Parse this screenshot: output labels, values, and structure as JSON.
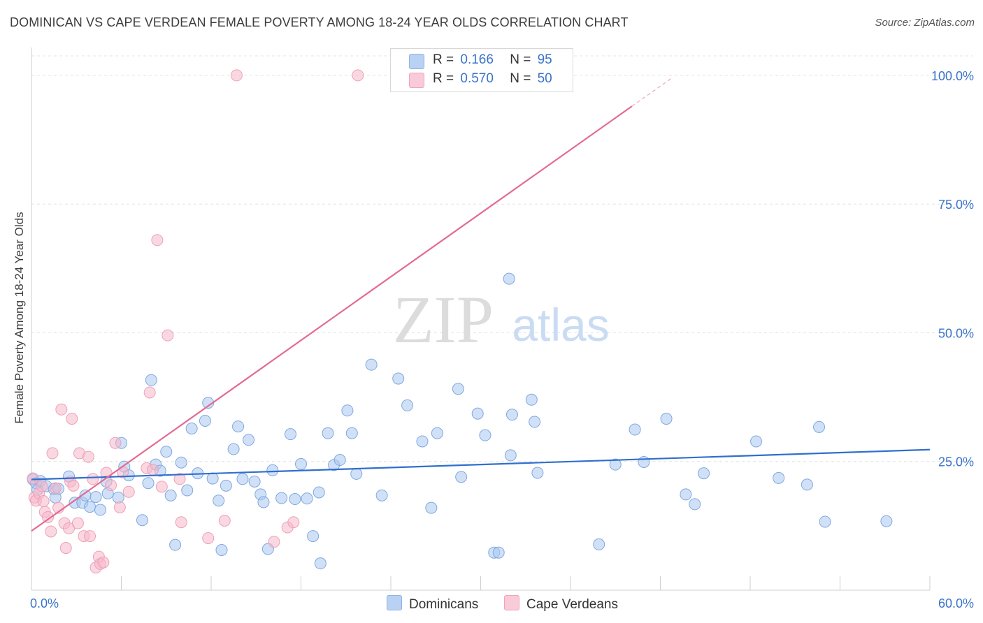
{
  "header": {
    "title": "DOMINICAN VS CAPE VERDEAN FEMALE POVERTY AMONG 18-24 YEAR OLDS CORRELATION CHART",
    "source": "Source: ZipAtlas.com"
  },
  "watermark": {
    "zip": "ZIP",
    "atlas": "atlas"
  },
  "legend_stats": {
    "r_label": "R =",
    "n_label": "N =",
    "rows": [
      {
        "r": "0.166",
        "n": "95",
        "color": "#a9c8f0"
      },
      {
        "r": "0.570",
        "n": "50",
        "color": "#f5b8ca"
      }
    ]
  },
  "bottom_legend": [
    "Dominicans",
    "Cape Verdeans"
  ],
  "chart_data": {
    "type": "scatter",
    "title": "DOMINICAN VS CAPE VERDEAN FEMALE POVERTY AMONG 18-24 YEAR OLDS CORRELATION CHART",
    "xlabel": "",
    "ylabel": "Female Poverty Among 18-24 Year Olds",
    "xlim": [
      0,
      60
    ],
    "ylim": [
      0,
      100
    ],
    "x_tick_labels": [
      "0.0%",
      "60.0%"
    ],
    "y_tick_labels": [
      "100.0%",
      "75.0%",
      "50.0%",
      "25.0%"
    ],
    "y_ticks": [
      100,
      75,
      50,
      25
    ],
    "grid": true,
    "legend_position": "top-center",
    "series": [
      {
        "name": "Dominicans",
        "color": "#a9c8f0",
        "line_color": "#2f6fcf",
        "trend": {
          "x": [
            0,
            60
          ],
          "y": [
            21.5,
            27.3
          ]
        },
        "points": [
          [
            0.1,
            21.5
          ],
          [
            0.3,
            20.8
          ],
          [
            0.4,
            19.5
          ],
          [
            0.6,
            21.2
          ],
          [
            1.0,
            20.2
          ],
          [
            1.5,
            19.6
          ],
          [
            1.6,
            18.0
          ],
          [
            1.8,
            19.7
          ],
          [
            2.5,
            22.1
          ],
          [
            2.9,
            17.0
          ],
          [
            3.4,
            17.0
          ],
          [
            3.6,
            18.4
          ],
          [
            3.9,
            16.2
          ],
          [
            4.3,
            18.1
          ],
          [
            4.6,
            15.6
          ],
          [
            5.0,
            21.1
          ],
          [
            5.1,
            18.8
          ],
          [
            5.8,
            18.0
          ],
          [
            6.0,
            28.6
          ],
          [
            6.2,
            24.0
          ],
          [
            6.5,
            22.3
          ],
          [
            7.4,
            13.6
          ],
          [
            7.8,
            20.8
          ],
          [
            8.0,
            40.8
          ],
          [
            8.3,
            24.4
          ],
          [
            8.6,
            23.2
          ],
          [
            9.0,
            26.9
          ],
          [
            9.3,
            18.4
          ],
          [
            9.6,
            8.8
          ],
          [
            10.0,
            24.8
          ],
          [
            10.4,
            19.4
          ],
          [
            10.7,
            31.4
          ],
          [
            11.1,
            22.7
          ],
          [
            11.6,
            32.9
          ],
          [
            11.8,
            36.4
          ],
          [
            12.1,
            21.7
          ],
          [
            12.5,
            17.4
          ],
          [
            12.7,
            7.8
          ],
          [
            13.0,
            20.3
          ],
          [
            13.5,
            27.4
          ],
          [
            13.8,
            31.8
          ],
          [
            14.1,
            21.6
          ],
          [
            14.5,
            29.2
          ],
          [
            14.9,
            21.1
          ],
          [
            15.3,
            18.6
          ],
          [
            15.5,
            17.1
          ],
          [
            15.8,
            8.0
          ],
          [
            16.1,
            23.3
          ],
          [
            16.7,
            17.9
          ],
          [
            17.3,
            30.3
          ],
          [
            17.6,
            17.7
          ],
          [
            18.0,
            24.5
          ],
          [
            18.4,
            17.8
          ],
          [
            18.8,
            10.5
          ],
          [
            19.2,
            19.0
          ],
          [
            19.3,
            5.2
          ],
          [
            19.8,
            30.5
          ],
          [
            20.2,
            24.3
          ],
          [
            20.6,
            25.3
          ],
          [
            21.1,
            34.9
          ],
          [
            21.4,
            30.5
          ],
          [
            21.7,
            22.6
          ],
          [
            22.7,
            43.8
          ],
          [
            23.4,
            18.4
          ],
          [
            24.5,
            41.1
          ],
          [
            25.1,
            35.9
          ],
          [
            26.1,
            28.9
          ],
          [
            26.7,
            16.0
          ],
          [
            27.1,
            30.5
          ],
          [
            28.5,
            39.1
          ],
          [
            28.7,
            22.0
          ],
          [
            29.8,
            34.3
          ],
          [
            30.3,
            30.1
          ],
          [
            30.9,
            7.3
          ],
          [
            31.2,
            7.3
          ],
          [
            31.9,
            60.5
          ],
          [
            32.0,
            26.2
          ],
          [
            32.1,
            34.1
          ],
          [
            33.4,
            37.0
          ],
          [
            33.6,
            32.7
          ],
          [
            33.8,
            22.8
          ],
          [
            37.9,
            8.9
          ],
          [
            39.0,
            24.4
          ],
          [
            40.3,
            31.2
          ],
          [
            40.9,
            24.9
          ],
          [
            42.4,
            33.3
          ],
          [
            43.7,
            18.6
          ],
          [
            44.3,
            16.7
          ],
          [
            44.9,
            22.7
          ],
          [
            48.4,
            28.9
          ],
          [
            49.9,
            21.8
          ],
          [
            51.8,
            20.5
          ],
          [
            52.6,
            31.7
          ],
          [
            53.0,
            13.3
          ],
          [
            57.1,
            13.4
          ]
        ]
      },
      {
        "name": "Cape Verdeans",
        "color": "#f5b8ca",
        "line_color": "#e36b93",
        "trend": {
          "x": [
            0,
            40.1
          ],
          "y": [
            11.5,
            94.0
          ]
        },
        "points": [
          [
            0.1,
            21.7
          ],
          [
            0.2,
            18.0
          ],
          [
            0.3,
            17.4
          ],
          [
            0.5,
            18.8
          ],
          [
            0.7,
            20.2
          ],
          [
            0.8,
            17.3
          ],
          [
            0.9,
            15.2
          ],
          [
            1.1,
            14.2
          ],
          [
            1.3,
            11.4
          ],
          [
            1.4,
            26.6
          ],
          [
            1.6,
            19.8
          ],
          [
            1.8,
            16.0
          ],
          [
            2.0,
            35.1
          ],
          [
            2.2,
            13.0
          ],
          [
            2.3,
            8.2
          ],
          [
            2.5,
            12.0
          ],
          [
            2.6,
            21.1
          ],
          [
            2.7,
            33.3
          ],
          [
            2.8,
            20.3
          ],
          [
            3.1,
            13.0
          ],
          [
            3.2,
            26.6
          ],
          [
            3.5,
            10.5
          ],
          [
            3.8,
            25.9
          ],
          [
            3.9,
            10.5
          ],
          [
            4.1,
            21.6
          ],
          [
            4.3,
            4.4
          ],
          [
            4.5,
            6.5
          ],
          [
            4.6,
            5.1
          ],
          [
            4.8,
            5.4
          ],
          [
            5.0,
            22.8
          ],
          [
            5.3,
            20.4
          ],
          [
            5.6,
            28.6
          ],
          [
            5.9,
            16.1
          ],
          [
            6.1,
            22.9
          ],
          [
            6.5,
            19.1
          ],
          [
            7.7,
            23.7
          ],
          [
            7.9,
            38.4
          ],
          [
            8.1,
            23.4
          ],
          [
            8.4,
            68.0
          ],
          [
            8.7,
            20.1
          ],
          [
            9.1,
            49.5
          ],
          [
            9.9,
            21.6
          ],
          [
            10.0,
            13.2
          ],
          [
            11.8,
            10.1
          ],
          [
            12.9,
            13.5
          ],
          [
            13.7,
            100
          ],
          [
            16.2,
            9.4
          ],
          [
            17.1,
            12.2
          ],
          [
            17.5,
            13.2
          ],
          [
            21.8,
            100
          ]
        ]
      }
    ]
  }
}
